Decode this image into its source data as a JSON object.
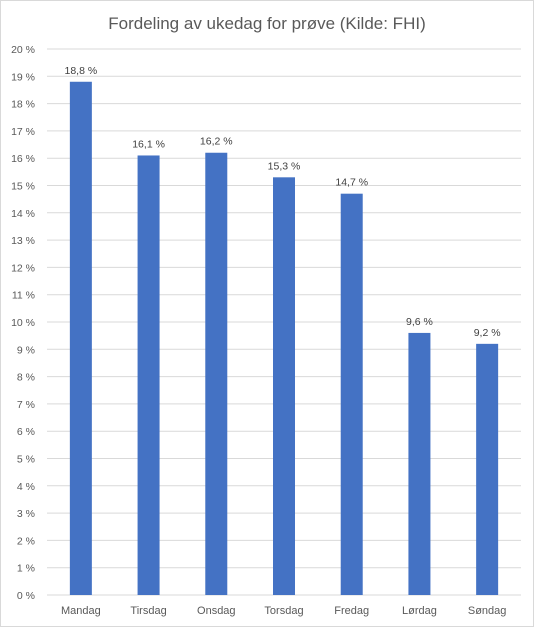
{
  "chart_data": {
    "type": "bar",
    "title": "Fordeling av ukedag for prøve (Kilde: FHI)",
    "categories": [
      "Mandag",
      "Tirsdag",
      "Onsdag",
      "Torsdag",
      "Fredag",
      "Lørdag",
      "Søndag"
    ],
    "values": [
      18.8,
      16.1,
      16.2,
      15.3,
      14.7,
      9.6,
      9.2
    ],
    "data_labels": [
      "18,8 %",
      "16,1 %",
      "16,2 %",
      "15,3 %",
      "14,7 %",
      "9,6 %",
      "9,2 %"
    ],
    "yticks": [
      "0 %",
      "1 %",
      "2 %",
      "3 %",
      "4 %",
      "5 %",
      "6 %",
      "7 %",
      "8 %",
      "9 %",
      "10 %",
      "11 %",
      "12 %",
      "13 %",
      "14 %",
      "15 %",
      "16 %",
      "17 %",
      "18 %",
      "19 %",
      "20 %"
    ],
    "ylim": [
      0,
      20
    ],
    "grid": true,
    "bar_color": "#4472C4"
  }
}
